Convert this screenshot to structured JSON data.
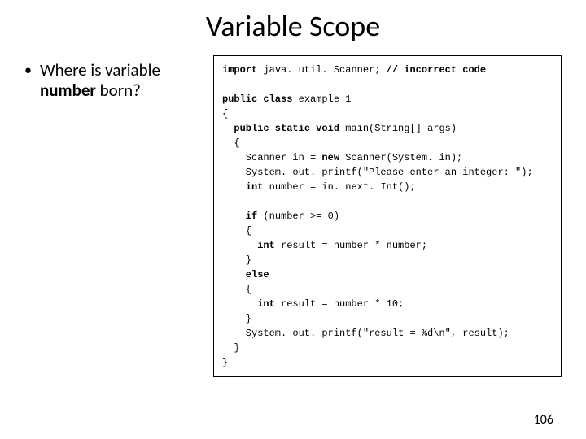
{
  "title": "Variable Scope",
  "bullet": {
    "prefix": "Where is variable ",
    "bold": "number",
    "suffix": " born?"
  },
  "code": {
    "line1a": "import",
    "line1b": " java. util. Scanner; ",
    "line1c": "// incorrect code",
    "blank": "",
    "line2a": "public class",
    "line2b": " example 1",
    "line3": "{",
    "line4a": "  public static void",
    "line4b": " main(String[] args)",
    "line5": "  {",
    "line6a": "    Scanner in = ",
    "line6b": "new",
    "line6c": " Scanner(System. in);",
    "line7": "    System. out. printf(\"Please enter an integer: \");",
    "line8a": "    int",
    "line8b": " number = in. next. Int();",
    "line9a": "    if",
    "line9b": " (number >= 0)",
    "line10": "    {",
    "line11a": "      int",
    "line11b": " result = number * number;",
    "line12": "    }",
    "line13a": "    else",
    "line14": "    {",
    "line15a": "      int",
    "line15b": " result = number * 10;",
    "line16": "    }",
    "line17": "    System. out. printf(\"result = %d\\n\", result);",
    "line18": "  }",
    "line19": "}"
  },
  "page_number": "106",
  "colors": {
    "text": "#000000",
    "background": "#ffffff",
    "border": "#000000"
  },
  "fonts": {
    "title_size": 36,
    "body_size": 21,
    "code_size": 12
  }
}
